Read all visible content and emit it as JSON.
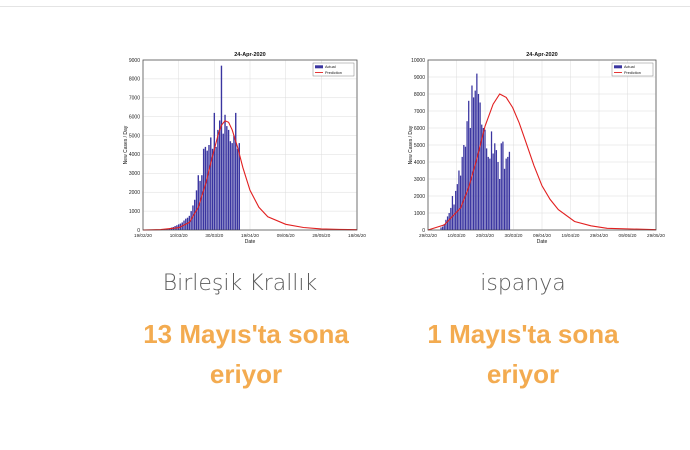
{
  "cards": [
    {
      "country": "Birleşik Krallık",
      "ends_text": "13 Mayıs'ta sona eriyor"
    },
    {
      "country": "ispanya",
      "ends_text": "1 Mayıs'ta sona eriyor"
    }
  ],
  "colors": {
    "bar": "#3a35a0",
    "prediction": "#e22020",
    "ends_text": "#f3ab50",
    "country_text": "#5c5c5c"
  },
  "chart_data": [
    {
      "type": "bar",
      "title": "24-Apr-2020",
      "xlabel": "Date",
      "ylabel": "New Cases / Day",
      "ylim": [
        0,
        9000
      ],
      "xlim_days": [
        0,
        120
      ],
      "yticks": [
        0,
        1000,
        2000,
        3000,
        4000,
        5000,
        6000,
        7000,
        8000,
        9000
      ],
      "xtick_labels": [
        "19/02/20",
        "10/03/20",
        "30/03/20",
        "19/04/20",
        "09/05/20",
        "29/05/20",
        "18/06/20"
      ],
      "legend": {
        "placement": "top-right",
        "entries": [
          "Actual",
          "Prediction"
        ]
      },
      "grid": true,
      "series": [
        {
          "name": "Actual",
          "start_date": "2020-03-01",
          "values": [
            35,
            45,
            50,
            80,
            90,
            130,
            160,
            210,
            250,
            300,
            340,
            400,
            500,
            600,
            650,
            750,
            1000,
            1300,
            1600,
            2100,
            2900,
            2600,
            2900,
            4300,
            4400,
            4200,
            4500,
            4900,
            4300,
            6200,
            4400,
            5300,
            5800,
            8700,
            5100,
            6100,
            5500,
            5300,
            4700,
            4600,
            5000,
            6200,
            4300,
            4600
          ]
        },
        {
          "name": "Prediction",
          "curve": [
            [
              0,
              0
            ],
            [
              10,
              20
            ],
            [
              20,
              120
            ],
            [
              26,
              400
            ],
            [
              31,
              1200
            ],
            [
              35,
              2400
            ],
            [
              39,
              3900
            ],
            [
              42,
              5000
            ],
            [
              44,
              5550
            ],
            [
              46,
              5780
            ],
            [
              48,
              5700
            ],
            [
              50,
              5300
            ],
            [
              53,
              4400
            ],
            [
              56,
              3300
            ],
            [
              60,
              2100
            ],
            [
              65,
              1200
            ],
            [
              70,
              700
            ],
            [
              80,
              300
            ],
            [
              90,
              130
            ],
            [
              100,
              60
            ],
            [
              110,
              30
            ],
            [
              120,
              15
            ]
          ]
        }
      ]
    },
    {
      "type": "bar",
      "title": "24-Apr-2020",
      "xlabel": "Date",
      "ylabel": "New Cases / Day",
      "ylim": [
        0,
        10000
      ],
      "xlim_days": [
        0,
        140
      ],
      "yticks": [
        0,
        1000,
        2000,
        3000,
        4000,
        5000,
        6000,
        7000,
        8000,
        9000,
        10000
      ],
      "xtick_labels": [
        "29/02/20",
        "10/03/20",
        "20/03/20",
        "30/03/20",
        "09/04/20",
        "19/04/20",
        "29/04/20",
        "09/05/20",
        "29/05/20"
      ],
      "legend": {
        "placement": "top-right",
        "entries": [
          "Actual",
          "Prediction"
        ]
      },
      "grid": true,
      "series": [
        {
          "name": "Actual",
          "start_date": "2020-03-08",
          "values": [
            150,
            200,
            350,
            600,
            800,
            1000,
            1300,
            2000,
            1500,
            2300,
            2700,
            3500,
            3200,
            4300,
            5000,
            4900,
            6400,
            7600,
            6000,
            8500,
            7800,
            8200,
            9200,
            8000,
            7500,
            6200,
            6000,
            5900,
            4800,
            4300,
            4200,
            5800,
            4500,
            5100,
            4700,
            4000,
            3000,
            5100,
            5200,
            3600,
            4200,
            4300,
            4600
          ]
        },
        {
          "name": "Prediction",
          "curve": [
            [
              0,
              0
            ],
            [
              10,
              300
            ],
            [
              20,
              1300
            ],
            [
              25,
              2500
            ],
            [
              30,
              4200
            ],
            [
              35,
              6100
            ],
            [
              40,
              7400
            ],
            [
              44,
              8000
            ],
            [
              48,
              7800
            ],
            [
              52,
              7200
            ],
            [
              56,
              6300
            ],
            [
              60,
              5200
            ],
            [
              65,
              3800
            ],
            [
              70,
              2600
            ],
            [
              75,
              1800
            ],
            [
              80,
              1200
            ],
            [
              90,
              500
            ],
            [
              100,
              250
            ],
            [
              110,
              100
            ],
            [
              140,
              20
            ]
          ]
        }
      ]
    }
  ]
}
